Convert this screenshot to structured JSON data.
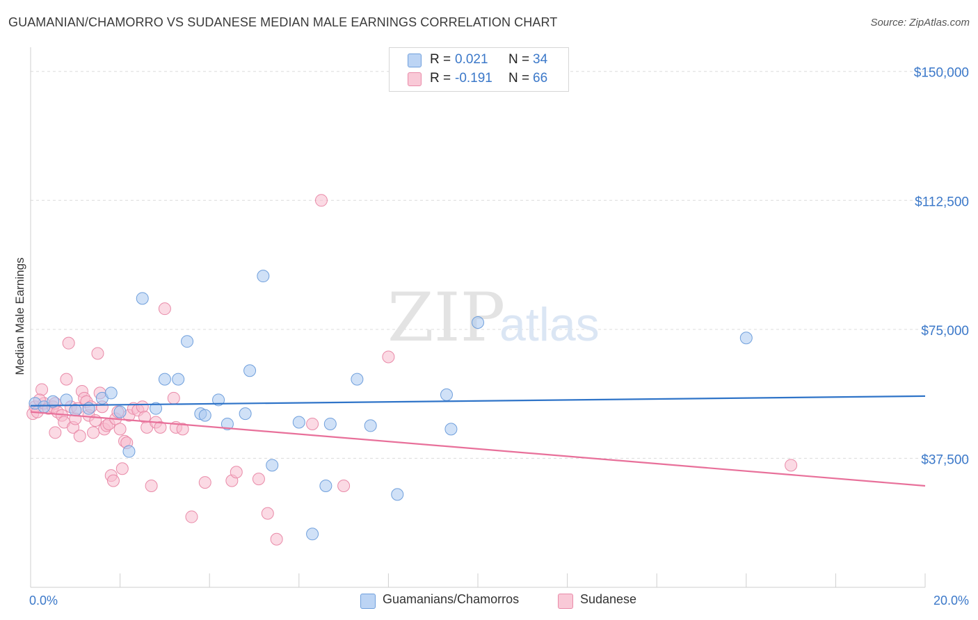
{
  "title": "GUAMANIAN/CHAMORRO VS SUDANESE MEDIAN MALE EARNINGS CORRELATION CHART",
  "source": "Source: ZipAtlas.com",
  "watermark": {
    "zip": "ZIP",
    "atlas": "atlas"
  },
  "colors": {
    "blue_fill": "#aac8f0",
    "blue_stroke": "#6f9fdc",
    "blue_line": "#2f74c8",
    "pink_fill": "#f7bccd",
    "pink_stroke": "#e98aa8",
    "pink_line": "#e8709a",
    "axis_label": "#3b78c9",
    "grid": "#dcdcdc"
  },
  "legend": {
    "rows": [
      {
        "r_label": "R =",
        "r_value": "0.021",
        "n_label": "N =",
        "n_value": "34",
        "series": "blue"
      },
      {
        "r_label": "R =",
        "r_value": "-0.191",
        "n_label": "N =",
        "n_value": "66",
        "series": "pink"
      }
    ]
  },
  "bottom_legend": [
    {
      "label": "Guamanians/Chamorros",
      "series": "blue"
    },
    {
      "label": "Sudanese",
      "series": "pink"
    }
  ],
  "chart_data": {
    "type": "scatter",
    "title": "GUAMANIAN/CHAMORRO VS SUDANESE MEDIAN MALE EARNINGS CORRELATION CHART",
    "xlabel": "",
    "ylabel": "Median Male Earnings",
    "xlim": [
      0,
      20
    ],
    "ylim": [
      0,
      155000
    ],
    "x_tick_labels": [
      {
        "value": 0,
        "label": "0.0%"
      },
      {
        "value": 20,
        "label": "20.0%"
      }
    ],
    "y_ticks": [
      {
        "value": 37500,
        "label": "$37,500"
      },
      {
        "value": 75000,
        "label": "$75,000"
      },
      {
        "value": 112500,
        "label": "$112,500"
      },
      {
        "value": 150000,
        "label": "$150,000"
      }
    ],
    "series": [
      {
        "name": "Guamanians/Chamorros",
        "color": "blue",
        "trend": {
          "x": [
            0,
            20
          ],
          "y": [
            52800,
            55600
          ]
        },
        "points": [
          {
            "x": 0.1,
            "y": 53500
          },
          {
            "x": 0.3,
            "y": 52500
          },
          {
            "x": 0.5,
            "y": 54000
          },
          {
            "x": 0.8,
            "y": 54500
          },
          {
            "x": 1.0,
            "y": 51500
          },
          {
            "x": 1.3,
            "y": 52000
          },
          {
            "x": 1.6,
            "y": 55000
          },
          {
            "x": 1.8,
            "y": 56500
          },
          {
            "x": 2.0,
            "y": 51000
          },
          {
            "x": 2.2,
            "y": 39500
          },
          {
            "x": 2.5,
            "y": 84000
          },
          {
            "x": 2.8,
            "y": 52000
          },
          {
            "x": 3.0,
            "y": 60500
          },
          {
            "x": 3.3,
            "y": 60500
          },
          {
            "x": 3.5,
            "y": 71500
          },
          {
            "x": 3.8,
            "y": 50500
          },
          {
            "x": 3.9,
            "y": 50000
          },
          {
            "x": 4.2,
            "y": 54500
          },
          {
            "x": 4.4,
            "y": 47500
          },
          {
            "x": 4.8,
            "y": 50500
          },
          {
            "x": 4.9,
            "y": 63000
          },
          {
            "x": 5.2,
            "y": 90500
          },
          {
            "x": 5.4,
            "y": 35500
          },
          {
            "x": 6.0,
            "y": 48000
          },
          {
            "x": 6.3,
            "y": 15500
          },
          {
            "x": 6.6,
            "y": 29500
          },
          {
            "x": 6.7,
            "y": 47500
          },
          {
            "x": 7.3,
            "y": 60500
          },
          {
            "x": 7.6,
            "y": 47000
          },
          {
            "x": 8.2,
            "y": 27000
          },
          {
            "x": 9.3,
            "y": 56000
          },
          {
            "x": 9.4,
            "y": 46000
          },
          {
            "x": 10.0,
            "y": 77000
          },
          {
            "x": 16.0,
            "y": 72500
          }
        ]
      },
      {
        "name": "Sudanese",
        "color": "pink",
        "trend": {
          "x": [
            0,
            20
          ],
          "y": [
            51000,
            29500
          ]
        },
        "points": [
          {
            "x": 0.05,
            "y": 50500
          },
          {
            "x": 0.1,
            "y": 52500
          },
          {
            "x": 0.15,
            "y": 51000
          },
          {
            "x": 0.25,
            "y": 57500
          },
          {
            "x": 0.3,
            "y": 53500
          },
          {
            "x": 0.4,
            "y": 52000
          },
          {
            "x": 0.5,
            "y": 52500
          },
          {
            "x": 0.55,
            "y": 53500
          },
          {
            "x": 0.55,
            "y": 45000
          },
          {
            "x": 0.6,
            "y": 51000
          },
          {
            "x": 0.7,
            "y": 50000
          },
          {
            "x": 0.75,
            "y": 48000
          },
          {
            "x": 0.8,
            "y": 60500
          },
          {
            "x": 0.85,
            "y": 71000
          },
          {
            "x": 0.9,
            "y": 52500
          },
          {
            "x": 0.95,
            "y": 46500
          },
          {
            "x": 1.0,
            "y": 49000
          },
          {
            "x": 1.05,
            "y": 52000
          },
          {
            "x": 1.1,
            "y": 44000
          },
          {
            "x": 1.15,
            "y": 57000
          },
          {
            "x": 1.2,
            "y": 55000
          },
          {
            "x": 1.25,
            "y": 54000
          },
          {
            "x": 1.3,
            "y": 50000
          },
          {
            "x": 1.35,
            "y": 52500
          },
          {
            "x": 1.4,
            "y": 45000
          },
          {
            "x": 1.45,
            "y": 48500
          },
          {
            "x": 1.5,
            "y": 68000
          },
          {
            "x": 1.55,
            "y": 56500
          },
          {
            "x": 1.6,
            "y": 52500
          },
          {
            "x": 1.65,
            "y": 46000
          },
          {
            "x": 1.7,
            "y": 47000
          },
          {
            "x": 1.75,
            "y": 47500
          },
          {
            "x": 1.8,
            "y": 32500
          },
          {
            "x": 1.85,
            "y": 31000
          },
          {
            "x": 1.9,
            "y": 49000
          },
          {
            "x": 1.95,
            "y": 51000
          },
          {
            "x": 2.0,
            "y": 46000
          },
          {
            "x": 2.05,
            "y": 34500
          },
          {
            "x": 2.1,
            "y": 42500
          },
          {
            "x": 2.15,
            "y": 42000
          },
          {
            "x": 2.2,
            "y": 50000
          },
          {
            "x": 2.3,
            "y": 52000
          },
          {
            "x": 2.4,
            "y": 51500
          },
          {
            "x": 2.5,
            "y": 52500
          },
          {
            "x": 2.55,
            "y": 49500
          },
          {
            "x": 2.6,
            "y": 46500
          },
          {
            "x": 2.7,
            "y": 29500
          },
          {
            "x": 2.8,
            "y": 48000
          },
          {
            "x": 2.9,
            "y": 46500
          },
          {
            "x": 3.0,
            "y": 81000
          },
          {
            "x": 3.2,
            "y": 55000
          },
          {
            "x": 3.25,
            "y": 46500
          },
          {
            "x": 3.4,
            "y": 46000
          },
          {
            "x": 3.6,
            "y": 20500
          },
          {
            "x": 3.9,
            "y": 30500
          },
          {
            "x": 4.5,
            "y": 31000
          },
          {
            "x": 4.6,
            "y": 33500
          },
          {
            "x": 5.1,
            "y": 31500
          },
          {
            "x": 5.3,
            "y": 21500
          },
          {
            "x": 5.5,
            "y": 14000
          },
          {
            "x": 6.3,
            "y": 47500
          },
          {
            "x": 6.5,
            "y": 112500
          },
          {
            "x": 7.0,
            "y": 29500
          },
          {
            "x": 8.0,
            "y": 67000
          },
          {
            "x": 17.0,
            "y": 35500
          },
          {
            "x": 0.2,
            "y": 54500
          }
        ]
      }
    ]
  }
}
